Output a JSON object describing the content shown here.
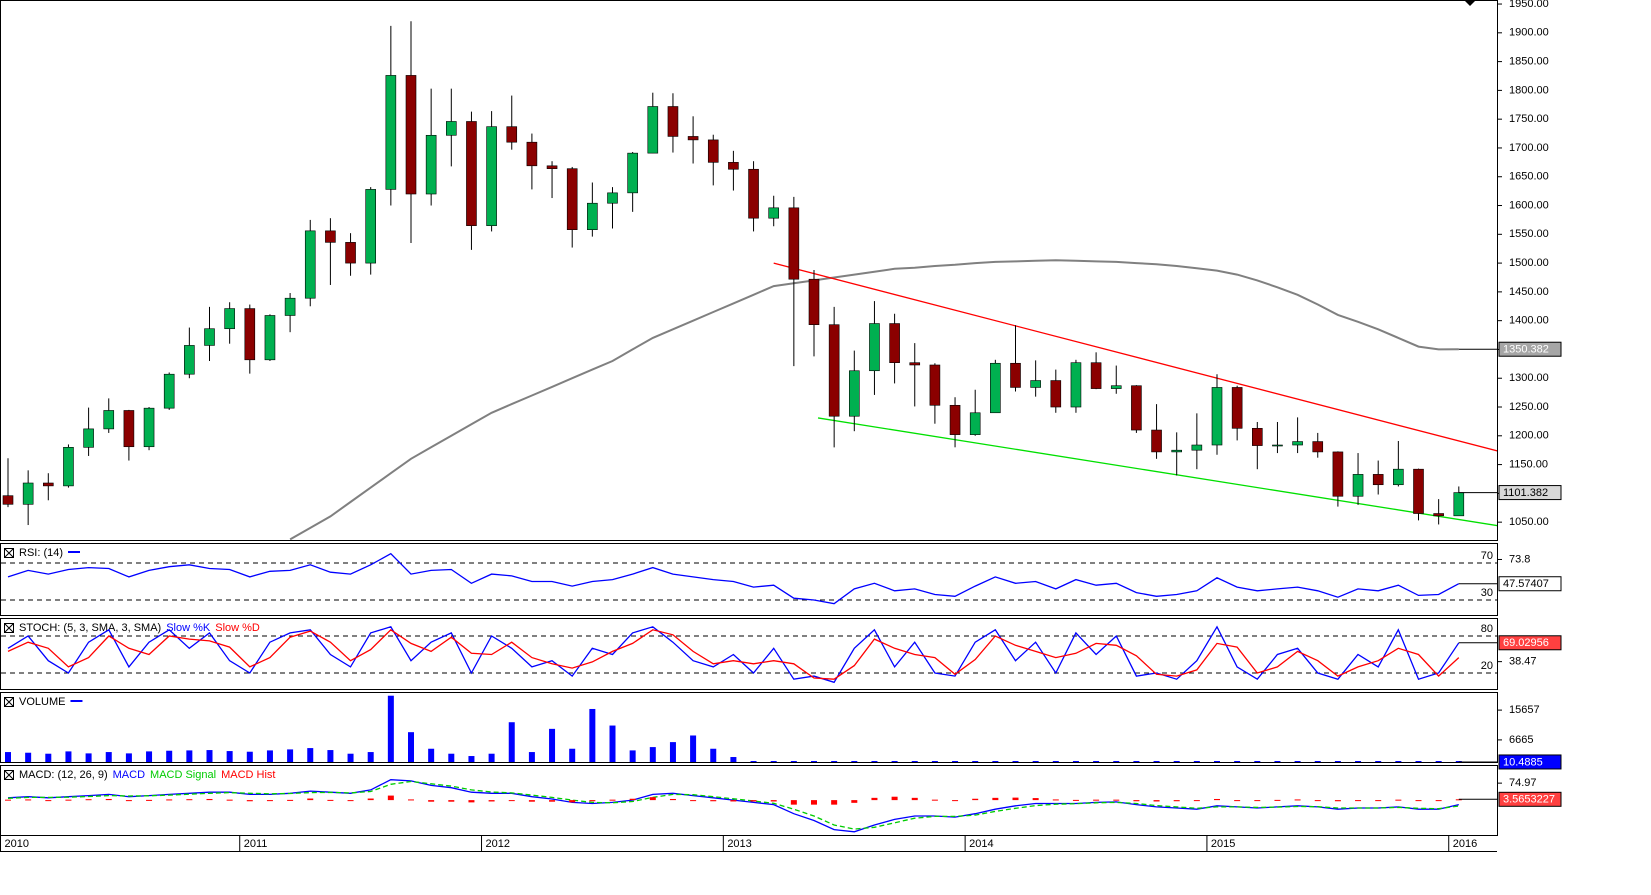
{
  "chart_data": [
    {
      "type": "candlestick",
      "categories": [
        "2010",
        null,
        null,
        null,
        null,
        null,
        null,
        null,
        null,
        null,
        null,
        null,
        "2011",
        null,
        null,
        null,
        null,
        null,
        null,
        null,
        null,
        null,
        null,
        null,
        "2012",
        null,
        null,
        null,
        null,
        null,
        null,
        null,
        null,
        null,
        null,
        null,
        "2013",
        null,
        null,
        null,
        null,
        null,
        null,
        null,
        null,
        null,
        null,
        null,
        "2014",
        null,
        null,
        null,
        null,
        null,
        null,
        null,
        null,
        null,
        null,
        null,
        "2015",
        null,
        null,
        null,
        null,
        null,
        null,
        null,
        null,
        null,
        null,
        null,
        "2016"
      ],
      "open": [
        1096,
        1081,
        1118,
        1113,
        1180,
        1212,
        1244,
        1181,
        1248,
        1307,
        1357,
        1386,
        1421,
        1332,
        1409,
        1439,
        1556,
        1536,
        1500,
        1628,
        1826,
        1620,
        1722,
        1746,
        1565,
        1737,
        1710,
        1669,
        1664,
        1558,
        1604,
        1622,
        1691,
        1772,
        1720,
        1714,
        1675,
        1663,
        1578,
        1596,
        1472,
        1393,
        1234,
        1313,
        1395,
        1327,
        1323,
        1253,
        1202,
        1240,
        1326,
        1284,
        1296,
        1250,
        1327,
        1282,
        1287,
        1210,
        1172,
        1175,
        1184,
        1284,
        1213,
        1183,
        1184,
        1190,
        1172,
        1095,
        1133,
        1115,
        1142,
        1065,
        1061
      ],
      "high": [
        1161,
        1140,
        1135,
        1185,
        1249,
        1265,
        1245,
        1250,
        1310,
        1388,
        1424,
        1432,
        1428,
        1411,
        1448,
        1575,
        1578,
        1552,
        1632,
        1912,
        1920,
        1803,
        1803,
        1763,
        1764,
        1791,
        1725,
        1677,
        1667,
        1640,
        1632,
        1693,
        1796,
        1795,
        1755,
        1723,
        1695,
        1677,
        1617,
        1615,
        1488,
        1424,
        1348,
        1434,
        1412,
        1361,
        1326,
        1267,
        1280,
        1332,
        1392,
        1331,
        1315,
        1332,
        1345,
        1322,
        1288,
        1255,
        1206,
        1239,
        1307,
        1287,
        1224,
        1224,
        1232,
        1205,
        1173,
        1170,
        1157,
        1191,
        1143,
        1090,
        1112
      ],
      "low": [
        1076,
        1045,
        1088,
        1110,
        1165,
        1205,
        1157,
        1175,
        1245,
        1300,
        1330,
        1360,
        1308,
        1330,
        1380,
        1425,
        1462,
        1478,
        1480,
        1600,
        1535,
        1600,
        1668,
        1523,
        1555,
        1697,
        1628,
        1613,
        1527,
        1546,
        1560,
        1589,
        1691,
        1692,
        1673,
        1635,
        1626,
        1555,
        1564,
        1321,
        1338,
        1180,
        1208,
        1271,
        1291,
        1251,
        1221,
        1180,
        1200,
        1240,
        1277,
        1268,
        1240,
        1240,
        1281,
        1273,
        1205,
        1160,
        1131,
        1142,
        1167,
        1192,
        1142,
        1170,
        1170,
        1162,
        1077,
        1080,
        1098,
        1112,
        1053,
        1046,
        1061
      ],
      "close": [
        1081,
        1118,
        1113,
        1180,
        1212,
        1244,
        1181,
        1248,
        1307,
        1357,
        1386,
        1421,
        1332,
        1409,
        1439,
        1556,
        1536,
        1500,
        1628,
        1826,
        1620,
        1722,
        1746,
        1565,
        1737,
        1710,
        1669,
        1664,
        1558,
        1604,
        1622,
        1691,
        1772,
        1720,
        1714,
        1675,
        1663,
        1578,
        1596,
        1472,
        1393,
        1234,
        1313,
        1395,
        1327,
        1323,
        1253,
        1202,
        1240,
        1326,
        1284,
        1296,
        1250,
        1327,
        1282,
        1287,
        1210,
        1172,
        1175,
        1184,
        1284,
        1213,
        1183,
        1184,
        1190,
        1172,
        1095,
        1133,
        1115,
        1142,
        1065,
        1061,
        1101.382
      ],
      "up_color": "#00b050",
      "down_color": "#8b0000",
      "box_color": "#d9d9d9",
      "series": [
        {
          "color": "#808080",
          "box_color": "#a6a6a6",
          "values": [
            null,
            null,
            null,
            null,
            null,
            null,
            null,
            null,
            null,
            null,
            null,
            null,
            null,
            null,
            1020,
            1040,
            1060,
            1085,
            1110,
            1135,
            1160,
            1180,
            1200,
            1220,
            1240,
            1255,
            1270,
            1285,
            1300,
            1315,
            1330,
            1350,
            1370,
            1385,
            1400,
            1415,
            1430,
            1445,
            1460,
            1465,
            1470,
            1475,
            1480,
            1485,
            1490,
            1492,
            1495,
            1497,
            1500,
            1502,
            1503,
            1504,
            1505,
            1504,
            1503,
            1502,
            1500,
            1498,
            1495,
            1491,
            1487,
            1480,
            1470,
            1458,
            1445,
            1428,
            1410,
            1398,
            1385,
            1370,
            1355,
            1350,
            1350.382
          ]
        }
      ],
      "trendlines": [
        {
          "color": "#ff0000",
          "x": [
            38,
            74.1
          ],
          "y": [
            1500,
            1172
          ]
        },
        {
          "color": "#00e000",
          "x": [
            40.2,
            74.1
          ],
          "y": [
            1231,
            1043
          ]
        }
      ],
      "ylim": [
        1019,
        1957
      ],
      "yticks": [
        {
          "value": 1050,
          "label": "1050.00"
        },
        {
          "value": 1100,
          "label": "1100.00"
        },
        {
          "value": 1150,
          "label": "1150.00"
        },
        {
          "value": 1200,
          "label": "1200.00"
        },
        {
          "value": 1250,
          "label": "1250.00"
        },
        {
          "value": 1300,
          "label": "1300.00"
        },
        {
          "value": 1350,
          "label": "1350.00"
        },
        {
          "value": 1400,
          "label": "1400.00"
        },
        {
          "value": 1450,
          "label": "1450.00"
        },
        {
          "value": 1500,
          "label": "1500.00"
        },
        {
          "value": 1550,
          "label": "1550.00"
        },
        {
          "value": 1600,
          "label": "1600.00"
        },
        {
          "value": 1650,
          "label": "1650.00"
        },
        {
          "value": 1700,
          "label": "1700.00"
        },
        {
          "value": 1750,
          "label": "1750.00"
        },
        {
          "value": 1800,
          "label": "1800.00"
        },
        {
          "value": 1850,
          "label": "1850.00"
        },
        {
          "value": 1900,
          "label": "1900.00"
        },
        {
          "value": 1950,
          "label": "1950.00"
        }
      ]
    },
    {
      "type": "line",
      "title": "RSI: (14)",
      "ylim": [
        13.8,
        91.6
      ],
      "yticks": [
        73.8
      ],
      "levels": [
        70,
        30
      ],
      "series": [
        {
          "color": "#0000ff",
          "box_color": "#ffffff",
          "values": [
            55,
            62,
            58,
            63,
            65,
            64,
            55,
            62,
            66,
            68,
            64,
            63,
            55,
            61,
            62,
            68,
            60,
            58,
            68,
            80,
            58,
            62,
            63,
            48,
            58,
            56,
            50,
            50,
            45,
            50,
            52,
            58,
            65,
            58,
            55,
            52,
            50,
            44,
            46,
            32,
            30,
            26,
            42,
            48,
            40,
            42,
            36,
            34,
            45,
            55,
            48,
            50,
            42,
            52,
            46,
            48,
            38,
            34,
            36,
            40,
            54,
            44,
            40,
            42,
            44,
            40,
            33,
            42,
            40,
            46,
            35,
            36,
            47.57407
          ]
        }
      ]
    },
    {
      "type": "line",
      "title": "STOCH: (5, 3, SMA, 3, SMA)",
      "ylim": [
        -5.9,
        109.2
      ],
      "yticks": [
        38.47
      ],
      "levels": [
        80,
        20
      ],
      "series": [
        {
          "name": "Slow %K",
          "color": "#0000ff",
          "box_color": "#ff4040",
          "values": [
            60,
            80,
            40,
            20,
            70,
            90,
            30,
            70,
            90,
            60,
            85,
            40,
            20,
            70,
            85,
            90,
            50,
            30,
            85,
            95,
            40,
            70,
            85,
            20,
            80,
            60,
            30,
            40,
            15,
            60,
            50,
            85,
            95,
            70,
            40,
            30,
            50,
            20,
            60,
            10,
            15,
            5,
            60,
            90,
            30,
            70,
            20,
            15,
            70,
            90,
            40,
            70,
            20,
            85,
            50,
            80,
            15,
            20,
            10,
            40,
            95,
            30,
            10,
            50,
            60,
            20,
            10,
            50,
            30,
            90,
            10,
            20,
            69.02956
          ]
        },
        {
          "name": "Slow %D",
          "color": "#ff0000",
          "values": [
            55,
            70,
            60,
            30,
            45,
            80,
            60,
            50,
            80,
            75,
            72,
            62,
            30,
            45,
            78,
            88,
            70,
            40,
            58,
            90,
            68,
            55,
            78,
            52,
            50,
            70,
            45,
            35,
            28,
            38,
            55,
            68,
            90,
            82,
            55,
            35,
            40,
            35,
            40,
            35,
            12,
            10,
            32,
            75,
            60,
            50,
            45,
            18,
            42,
            80,
            65,
            55,
            45,
            52,
            68,
            65,
            48,
            18,
            15,
            25,
            68,
            62,
            20,
            30,
            55,
            40,
            15,
            30,
            40,
            60,
            50,
            15,
            45
          ]
        }
      ]
    },
    {
      "type": "bar",
      "title": "VOLUME",
      "color": "#0000ff",
      "box_color": "#0000ff",
      "ylim": [
        0,
        21120
      ],
      "yticks": [
        6665,
        15657
      ],
      "values": [
        3000,
        2800,
        2500,
        3200,
        2600,
        3000,
        2600,
        3200,
        3400,
        3500,
        3600,
        3300,
        3100,
        3500,
        3800,
        4200,
        3600,
        2500,
        3000,
        20000,
        9000,
        4000,
        2500,
        1800,
        2500,
        12000,
        3000,
        10000,
        4000,
        16000,
        11000,
        3500,
        4500,
        6000,
        8000,
        4000,
        1500,
        60,
        60,
        60,
        60,
        60,
        60,
        60,
        60,
        60,
        60,
        60,
        60,
        60,
        60,
        60,
        60,
        60,
        60,
        60,
        60,
        60,
        60,
        60,
        60,
        60,
        60,
        60,
        60,
        60,
        60,
        60,
        60,
        60,
        60,
        60,
        10.4885
      ]
    },
    {
      "type": "line",
      "title": "MACD: (12, 26, 9)",
      "ylim": [
        -154,
        155
      ],
      "yticks": [
        74.97
      ],
      "series": [
        {
          "name": "MACD",
          "color": "#0000ff",
          "style": "line",
          "values": [
            10,
            15,
            10,
            15,
            20,
            25,
            15,
            20,
            25,
            30,
            35,
            35,
            25,
            25,
            30,
            40,
            35,
            30,
            45,
            90,
            85,
            65,
            55,
            35,
            30,
            30,
            15,
            5,
            -10,
            -15,
            -10,
            0,
            25,
            30,
            20,
            10,
            0,
            -10,
            -20,
            -60,
            -90,
            -130,
            -140,
            -110,
            -85,
            -70,
            -70,
            -75,
            -60,
            -40,
            -25,
            -15,
            -15,
            -15,
            -10,
            -8,
            -20,
            -30,
            -35,
            -40,
            -25,
            -30,
            -35,
            -30,
            -25,
            -30,
            -40,
            -35,
            -35,
            -30,
            -40,
            -40,
            -20
          ]
        },
        {
          "name": "MACD Signal",
          "color": "#00cc00",
          "style": "dashed",
          "values": [
            8,
            12,
            12,
            13,
            16,
            20,
            18,
            19,
            22,
            26,
            30,
            33,
            30,
            28,
            29,
            33,
            34,
            32,
            38,
            70,
            82,
            72,
            62,
            45,
            36,
            32,
            22,
            12,
            0,
            -10,
            -12,
            -6,
            12,
            25,
            24,
            15,
            6,
            -4,
            -14,
            -40,
            -70,
            -110,
            -128,
            -120,
            -100,
            -80,
            -72,
            -72,
            -66,
            -50,
            -36,
            -24,
            -18,
            -16,
            -12,
            -10,
            -15,
            -24,
            -30,
            -36,
            -30,
            -30,
            -32,
            -31,
            -28,
            -29,
            -35,
            -35,
            -35,
            -32,
            -36,
            -38,
            -26
          ]
        },
        {
          "name": "MACD Hist",
          "color": "#ff0000",
          "style": "histogram",
          "box_color": "#ff4040",
          "values": [
            2,
            3,
            -2,
            2,
            4,
            5,
            -3,
            1,
            3,
            4,
            5,
            2,
            -5,
            -3,
            1,
            7,
            1,
            -2,
            7,
            20,
            3,
            -7,
            -7,
            -10,
            -6,
            -2,
            -7,
            -7,
            -10,
            -5,
            2,
            6,
            13,
            5,
            -4,
            -5,
            -6,
            -6,
            -6,
            -20,
            -20,
            -20,
            -12,
            10,
            15,
            10,
            2,
            -3,
            6,
            10,
            11,
            9,
            3,
            1,
            2,
            2,
            -5,
            -6,
            -5,
            -4,
            5,
            0,
            -3,
            1,
            3,
            -1,
            -5,
            0,
            0,
            2,
            -4,
            -2,
            3.5653227
          ]
        }
      ]
    }
  ]
}
